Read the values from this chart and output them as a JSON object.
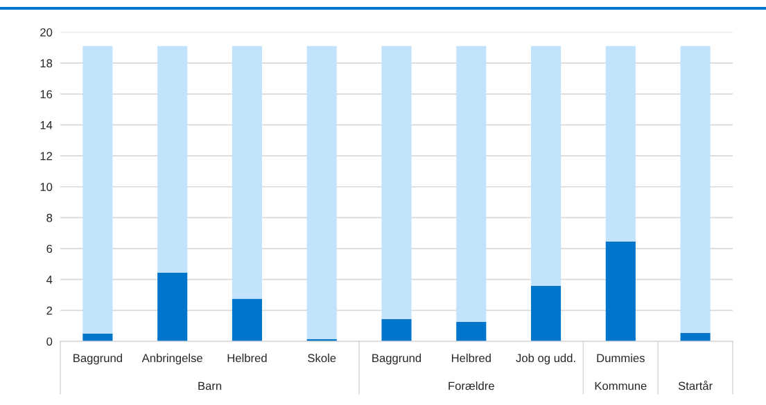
{
  "chart_data": {
    "type": "bar",
    "stacked": true,
    "categories": [
      "Baggrund",
      "Anbringelse",
      "Helbred",
      "Skole",
      "Baggrund",
      "Helbred",
      "Job og udd.",
      "Dummies",
      null
    ],
    "series": [
      {
        "color": "#0075cc",
        "values": [
          0.5,
          4.45,
          2.75,
          0.15,
          1.45,
          1.25,
          3.6,
          6.45,
          0.55
        ]
      },
      {
        "color": "#c2e3fc",
        "values": [
          18.6,
          14.65,
          16.35,
          18.95,
          17.65,
          17.85,
          15.5,
          12.65,
          18.55
        ]
      }
    ],
    "annotations": [
      "Barn",
      "Forældre",
      "Kommune",
      "Startår"
    ],
    "ylim": [
      0,
      20
    ],
    "yticks": [
      0,
      2,
      4,
      6,
      8,
      10,
      12,
      14,
      16,
      18,
      20
    ],
    "grid": "y",
    "legend": false
  }
}
